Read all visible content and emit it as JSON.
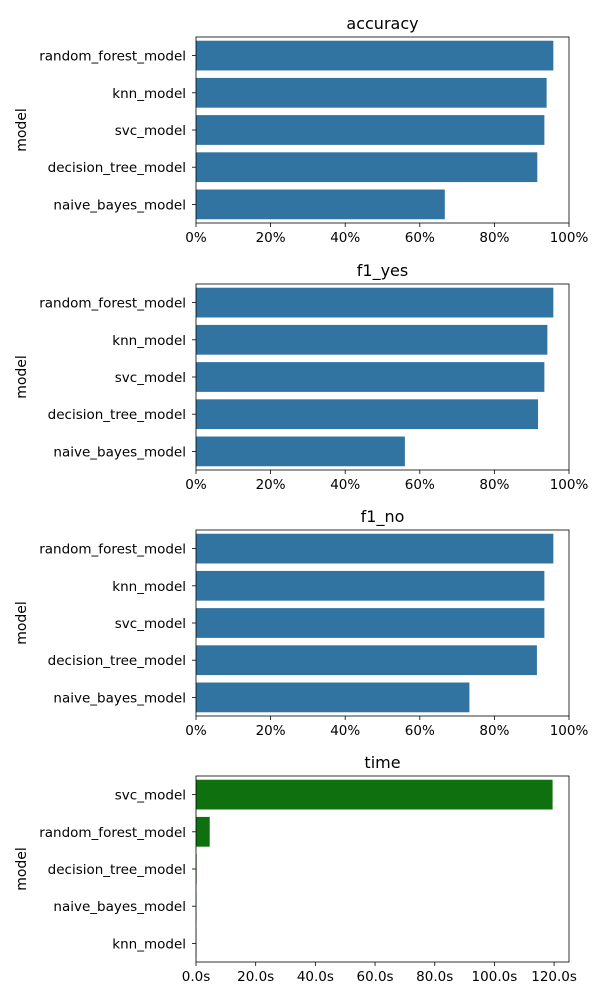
{
  "chart_data": [
    {
      "type": "bar",
      "orientation": "horizontal",
      "title": "accuracy",
      "ylabel": "model",
      "xlabel": "",
      "categories": [
        "random_forest_model",
        "knn_model",
        "svc_model",
        "decision_tree_model",
        "naive_bayes_model"
      ],
      "values": [
        0.958,
        0.94,
        0.934,
        0.915,
        0.667
      ],
      "xlim": [
        0,
        1.0
      ],
      "xticks": [
        0,
        0.2,
        0.4,
        0.6,
        0.8,
        1.0
      ],
      "xtick_labels": [
        "0%",
        "20%",
        "40%",
        "60%",
        "80%",
        "100%"
      ],
      "color": "#3274a1"
    },
    {
      "type": "bar",
      "orientation": "horizontal",
      "title": "f1_yes",
      "ylabel": "model",
      "xlabel": "",
      "categories": [
        "random_forest_model",
        "knn_model",
        "svc_model",
        "decision_tree_model",
        "naive_bayes_model"
      ],
      "values": [
        0.958,
        0.942,
        0.934,
        0.917,
        0.56
      ],
      "xlim": [
        0,
        1.0
      ],
      "xticks": [
        0,
        0.2,
        0.4,
        0.6,
        0.8,
        1.0
      ],
      "xtick_labels": [
        "0%",
        "20%",
        "40%",
        "60%",
        "80%",
        "100%"
      ],
      "color": "#3274a1"
    },
    {
      "type": "bar",
      "orientation": "horizontal",
      "title": "f1_no",
      "ylabel": "model",
      "xlabel": "",
      "categories": [
        "random_forest_model",
        "knn_model",
        "svc_model",
        "decision_tree_model",
        "naive_bayes_model"
      ],
      "values": [
        0.958,
        0.934,
        0.934,
        0.914,
        0.733
      ],
      "xlim": [
        0,
        1.0
      ],
      "xticks": [
        0,
        0.2,
        0.4,
        0.6,
        0.8,
        1.0
      ],
      "xtick_labels": [
        "0%",
        "20%",
        "40%",
        "60%",
        "80%",
        "100%"
      ],
      "color": "#3274a1"
    },
    {
      "type": "bar",
      "orientation": "horizontal",
      "title": "time",
      "ylabel": "model",
      "xlabel": "",
      "categories": [
        "svc_model",
        "random_forest_model",
        "decision_tree_model",
        "naive_bayes_model",
        "knn_model"
      ],
      "values": [
        119.5,
        4.6,
        0.2,
        0.1,
        0.1
      ],
      "xlim": [
        0,
        125.0
      ],
      "xticks": [
        0,
        20,
        40,
        60,
        80,
        100,
        120
      ],
      "xtick_labels": [
        "0.0s",
        "20.0s",
        "40.0s",
        "60.0s",
        "80.0s",
        "100.0s",
        "120.0s"
      ],
      "color": "#0e700e"
    }
  ]
}
